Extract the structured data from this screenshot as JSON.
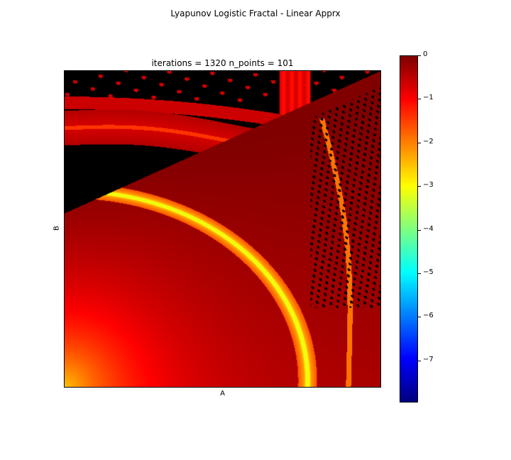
{
  "chart_data": {
    "type": "heatmap",
    "title": "Lyapunov Logistic Fractal - Linear Apprx",
    "subtitle": "iterations = 1320 n_points = 101",
    "xlabel": "A",
    "ylabel": "B",
    "colormap": "jet",
    "colorbar": {
      "range": [
        -7.95,
        0
      ],
      "ticks": [
        0,
        -1,
        -2,
        -3,
        -4,
        -5,
        -6,
        -7
      ],
      "tick_labels": [
        "0",
        "−1",
        "−2",
        "−3",
        "−4",
        "−5",
        "−6",
        "−7"
      ]
    },
    "stable_region_color": "#000000"
  }
}
